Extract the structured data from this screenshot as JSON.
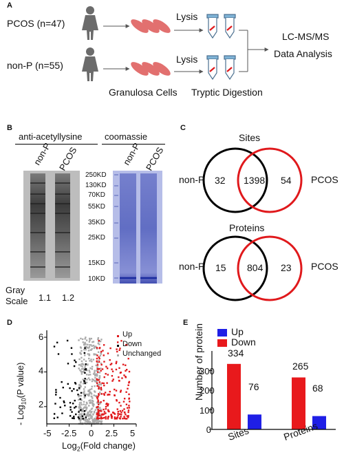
{
  "panel_labels": {
    "a": "A",
    "b": "B",
    "c": "C",
    "d": "D",
    "e": "E"
  },
  "panel_a": {
    "pcos_label": "PCOS (n=47)",
    "nonp_label": "non-P (n=55)",
    "lysis": "Lysis",
    "granulosa": "Granulosa Cells",
    "tryptic": "Tryptic Digestion",
    "lcms": "LC-MS/MS",
    "data_analysis": "Data Analysis"
  },
  "panel_b": {
    "blot_title": "anti-acetyllysine",
    "gel_title": "coomassie",
    "lane_nonp": "non-P",
    "lane_pcos": "PCOS",
    "markers": [
      "250KD",
      "130KD",
      "70KD",
      "55KD",
      "35KD",
      "25KD",
      "15KD",
      "10KD"
    ],
    "gray_label_1": "Gray",
    "gray_label_2": "Scale",
    "gray_values": [
      "1.1",
      "1.2"
    ]
  },
  "panel_c": {
    "sites_title": "Sites",
    "proteins_title": "Proteins",
    "left_label": "non-P",
    "right_label": "PCOS",
    "sites": {
      "left": "32",
      "both": "1398",
      "right": "54"
    },
    "proteins": {
      "left": "15",
      "both": "804",
      "right": "23"
    },
    "colors": {
      "nonp": "#000000",
      "pcos": "#e0191c"
    }
  },
  "panel_d": {
    "legend": [
      {
        "label": "Up",
        "color": "#e0191c"
      },
      {
        "label": "Down",
        "color": "#000000"
      },
      {
        "label": "Unchanged",
        "color": "#aaaaaa"
      }
    ],
    "x_label_pre": "Log",
    "x_label_sub": "2",
    "x_label_post": "(Fold change)",
    "y_label_pre": "- Log",
    "y_label_sub": "10",
    "y_label_post": "(P value)",
    "x_ticks": [
      "-5",
      "-2.5",
      "0",
      "2.5",
      "5"
    ],
    "y_ticks": [
      "2",
      "4",
      "6"
    ]
  },
  "chart_data": [
    {
      "type": "scatter",
      "xlim": [
        -5,
        5
      ],
      "ylim": [
        1,
        6.4
      ],
      "series": [
        {
          "name": "Up",
          "color": "#e0191c",
          "points": "many points (x 0.6 to 4.3, y 1.3 to 5.9)"
        },
        {
          "name": "Down",
          "color": "#000000",
          "points": "points (x -4.2 to -0.6, y 1.3 to 5.9)"
        },
        {
          "name": "Unchanged",
          "color": "#aaaaaa",
          "points": "dense cloud (x -1.5 to 1.0, y 1.0 to 6.0)"
        }
      ]
    },
    {
      "type": "bar",
      "categories": [
        "Sites",
        "Proteins"
      ],
      "series": [
        {
          "name": "Up",
          "color": "#1f1fe6",
          "values": [
            76,
            68
          ]
        },
        {
          "name": "Down",
          "color": "#e8191c",
          "values": [
            334,
            265
          ]
        }
      ],
      "ylabel": "Number of protein",
      "ylim": [
        0,
        400
      ],
      "y_ticks": [
        "0",
        "100",
        "200",
        "300"
      ]
    }
  ]
}
